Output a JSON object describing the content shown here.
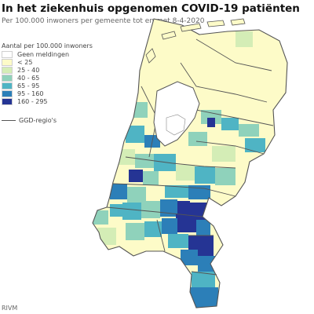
{
  "title": "In het ziekenhuis opgenomen COVID-19 patiënten",
  "subtitle": "Per 100.000 inwoners per gemeente tot en met 8-4-2020",
  "legend": {
    "title": "Aantal per 100.000 inwoners",
    "items": [
      {
        "label": "Geen meldingen",
        "color": "#ffffff"
      },
      {
        "label": "< 25",
        "color": "#fdfbc8"
      },
      {
        "label": "25 - 40",
        "color": "#d4edb6"
      },
      {
        "label": "40 - 65",
        "color": "#8fd2bb"
      },
      {
        "label": "65 - 95",
        "color": "#4fb4c4"
      },
      {
        "label": "95 - 160",
        "color": "#2c7fb8"
      },
      {
        "label": "160 - 295",
        "color": "#253494"
      }
    ],
    "ggd_label": "GGD-regio's"
  },
  "source": "RIVM"
}
